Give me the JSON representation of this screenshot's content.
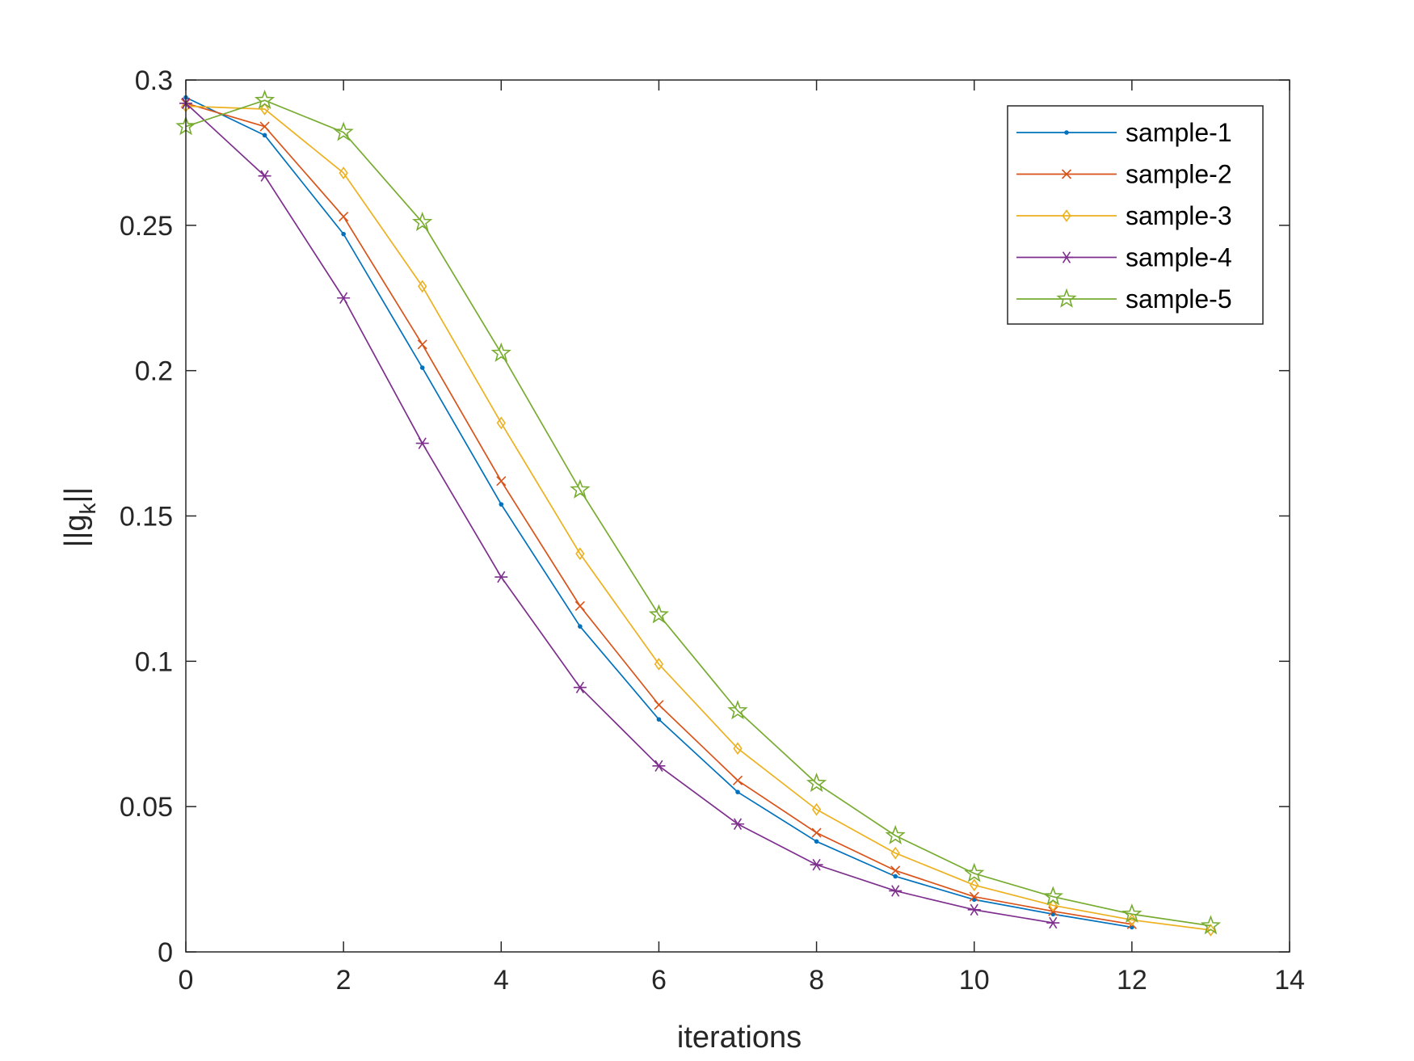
{
  "chart_data": {
    "type": "line",
    "xlabel": "iterations",
    "ylabel": "||g_k||",
    "ylabel_main": "||g",
    "ylabel_sub": "k",
    "ylabel_end": "||",
    "xlim": [
      0,
      14
    ],
    "ylim": [
      0,
      0.3
    ],
    "xticks": [
      0,
      2,
      4,
      6,
      8,
      10,
      12,
      14
    ],
    "yticks": [
      0,
      0.05,
      0.1,
      0.15,
      0.2,
      0.25,
      0.3
    ],
    "xtick_labels": [
      "0",
      "2",
      "4",
      "6",
      "8",
      "10",
      "12",
      "14"
    ],
    "ytick_labels": [
      "0",
      "0.05",
      "0.1",
      "0.15",
      "0.2",
      "0.25",
      "0.3"
    ],
    "grid": false,
    "legend_position": "top-right",
    "series": [
      {
        "name": "sample-1",
        "color": "#0072BD",
        "marker": "point",
        "x": [
          0,
          1,
          2,
          3,
          4,
          5,
          6,
          7,
          8,
          9,
          10,
          11,
          12
        ],
        "y": [
          0.294,
          0.281,
          0.247,
          0.201,
          0.154,
          0.112,
          0.08,
          0.055,
          0.038,
          0.026,
          0.018,
          0.013,
          0.0085
        ]
      },
      {
        "name": "sample-2",
        "color": "#D95319",
        "marker": "x",
        "x": [
          0,
          1,
          2,
          3,
          4,
          5,
          6,
          7,
          8,
          9,
          10,
          11,
          12
        ],
        "y": [
          0.292,
          0.284,
          0.253,
          0.209,
          0.162,
          0.119,
          0.085,
          0.059,
          0.041,
          0.028,
          0.019,
          0.014,
          0.0095
        ]
      },
      {
        "name": "sample-3",
        "color": "#EDB120",
        "marker": "diamond",
        "x": [
          0,
          1,
          2,
          3,
          4,
          5,
          6,
          7,
          8,
          9,
          10,
          11,
          12,
          13
        ],
        "y": [
          0.291,
          0.29,
          0.268,
          0.229,
          0.182,
          0.137,
          0.099,
          0.07,
          0.049,
          0.034,
          0.023,
          0.016,
          0.011,
          0.0075
        ]
      },
      {
        "name": "sample-4",
        "color": "#7E2F8E",
        "marker": "asterisk",
        "x": [
          0,
          1,
          2,
          3,
          4,
          5,
          6,
          7,
          8,
          9,
          10,
          11
        ],
        "y": [
          0.292,
          0.267,
          0.225,
          0.175,
          0.129,
          0.091,
          0.064,
          0.044,
          0.03,
          0.021,
          0.0145,
          0.01
        ]
      },
      {
        "name": "sample-5",
        "color": "#77AC30",
        "marker": "star",
        "x": [
          0,
          1,
          2,
          3,
          4,
          5,
          6,
          7,
          8,
          9,
          10,
          11,
          12,
          13
        ],
        "y": [
          0.284,
          0.293,
          0.282,
          0.251,
          0.206,
          0.159,
          0.116,
          0.083,
          0.058,
          0.04,
          0.027,
          0.019,
          0.013,
          0.009
        ]
      }
    ]
  }
}
